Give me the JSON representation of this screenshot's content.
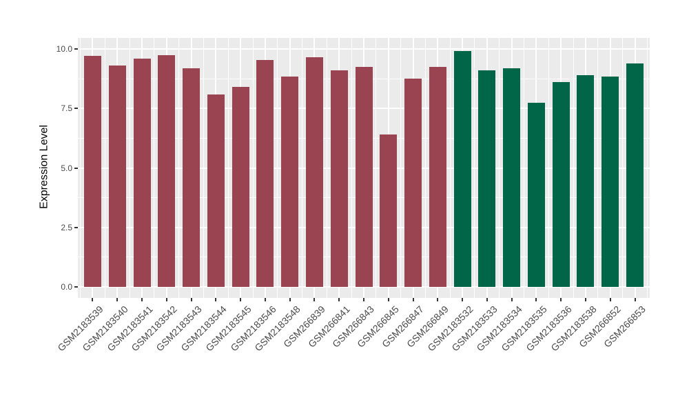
{
  "figure": {
    "background_color": "#FFFFFF",
    "panel_background_color": "#EBEBEB",
    "grid_color": "#FFFFFF",
    "axis_text_color": "#4A4A4A",
    "tick_color": "#333333"
  },
  "chart_data": {
    "type": "bar",
    "title": "",
    "xlabel": "",
    "ylabel": "Expression Level",
    "ylim": [
      0,
      10
    ],
    "ytick_labels": [
      "0.0",
      "2.5",
      "5.0",
      "7.5",
      "10.0"
    ],
    "ytick_values": [
      0,
      2.5,
      5,
      7.5,
      10
    ],
    "yminor_values": [
      1.25,
      3.75,
      6.25,
      8.75
    ],
    "grid": "major and minor white gridlines on gray panel",
    "legend_position": "none",
    "x_tick_rotation_deg": 45,
    "categories": [
      "GSM2183539",
      "GSM2183540",
      "GSM2183541",
      "GSM2183542",
      "GSM2183543",
      "GSM2183544",
      "GSM2183545",
      "GSM2183546",
      "GSM2183548",
      "GSM266839",
      "GSM266841",
      "GSM266843",
      "GSM266845",
      "GSM266847",
      "GSM266849",
      "GSM2183532",
      "GSM2183533",
      "GSM2183534",
      "GSM2183535",
      "GSM2183536",
      "GSM2183538",
      "GSM266852",
      "GSM266853"
    ],
    "values": [
      9.7,
      9.3,
      9.6,
      9.75,
      9.2,
      8.1,
      8.4,
      9.55,
      8.85,
      9.65,
      9.1,
      9.25,
      6.4,
      8.75,
      9.25,
      9.9,
      9.1,
      9.2,
      7.75,
      8.6,
      8.9,
      8.85,
      9.4
    ],
    "groups": [
      "group1",
      "group1",
      "group1",
      "group1",
      "group1",
      "group1",
      "group1",
      "group1",
      "group1",
      "group1",
      "group1",
      "group1",
      "group1",
      "group1",
      "group1",
      "group2",
      "group2",
      "group2",
      "group2",
      "group2",
      "group2",
      "group2",
      "group2"
    ],
    "group_colors": {
      "group1": "#9A4351",
      "group2": "#006647"
    }
  }
}
